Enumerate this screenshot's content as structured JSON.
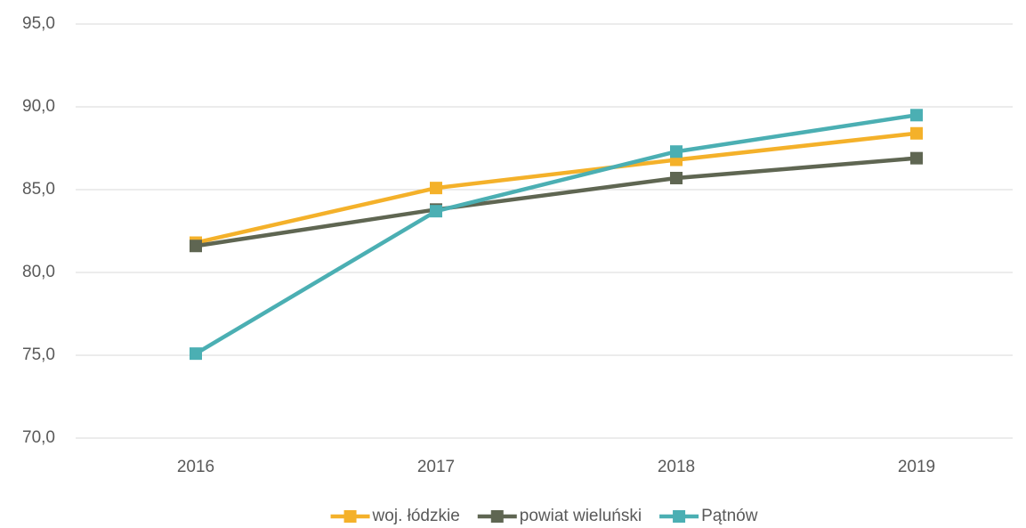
{
  "chart_data": {
    "type": "line",
    "categories": [
      "2016",
      "2017",
      "2018",
      "2019"
    ],
    "series": [
      {
        "name": "woj. łódzkie",
        "color": "#f4b12a",
        "values": [
          81.8,
          85.1,
          86.8,
          88.4
        ]
      },
      {
        "name": "powiat wieluński",
        "color": "#5f6652",
        "values": [
          81.6,
          83.8,
          85.7,
          86.9
        ]
      },
      {
        "name": "Pątnów",
        "color": "#4bafb3",
        "values": [
          75.1,
          83.7,
          87.3,
          89.5
        ]
      }
    ],
    "ylim": [
      70,
      95
    ],
    "yticks": [
      {
        "value": 70,
        "label": "70,0"
      },
      {
        "value": 75,
        "label": "75,0"
      },
      {
        "value": 80,
        "label": "80,0"
      },
      {
        "value": 85,
        "label": "85,0"
      },
      {
        "value": 90,
        "label": "90,0"
      },
      {
        "value": 95,
        "label": "95,0"
      }
    ],
    "grid": true,
    "legend": "bottom"
  }
}
